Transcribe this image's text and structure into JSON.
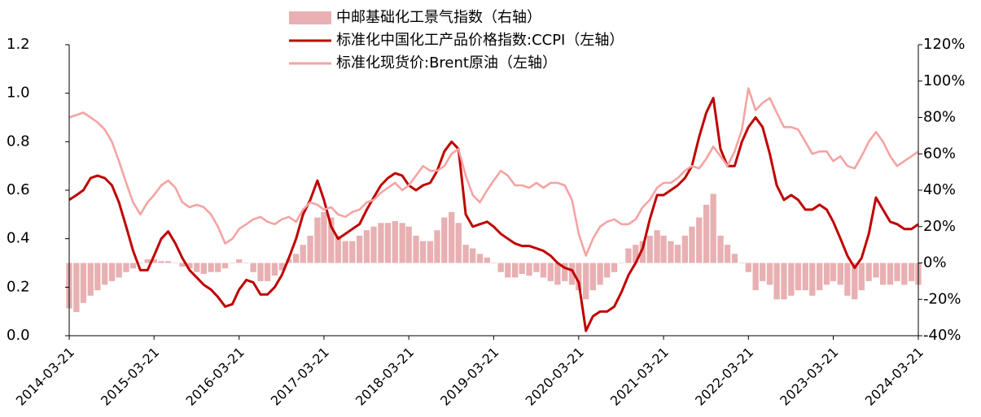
{
  "chart_data": {
    "type": "bar-line",
    "x": [
      "2014-03-21",
      "2014-04-21",
      "2014-05-21",
      "2014-06-21",
      "2014-07-21",
      "2014-08-21",
      "2014-09-21",
      "2014-10-21",
      "2014-11-21",
      "2014-12-21",
      "2015-01-21",
      "2015-02-21",
      "2015-03-21",
      "2015-04-21",
      "2015-05-21",
      "2015-06-21",
      "2015-07-21",
      "2015-08-21",
      "2015-09-21",
      "2015-10-21",
      "2015-11-21",
      "2015-12-21",
      "2016-01-21",
      "2016-02-21",
      "2016-03-21",
      "2016-04-21",
      "2016-05-21",
      "2016-06-21",
      "2016-07-21",
      "2016-08-21",
      "2016-09-21",
      "2016-10-21",
      "2016-11-21",
      "2016-12-21",
      "2017-01-21",
      "2017-02-21",
      "2017-03-21",
      "2017-04-21",
      "2017-05-21",
      "2017-06-21",
      "2017-07-21",
      "2017-08-21",
      "2017-09-21",
      "2017-10-21",
      "2017-11-21",
      "2017-12-21",
      "2018-01-21",
      "2018-02-21",
      "2018-03-21",
      "2018-04-21",
      "2018-05-21",
      "2018-06-21",
      "2018-07-21",
      "2018-08-21",
      "2018-09-21",
      "2018-10-21",
      "2018-11-21",
      "2018-12-21",
      "2019-01-21",
      "2019-02-21",
      "2019-03-21",
      "2019-04-21",
      "2019-05-21",
      "2019-06-21",
      "2019-07-21",
      "2019-08-21",
      "2019-09-21",
      "2019-10-21",
      "2019-11-21",
      "2019-12-21",
      "2020-01-21",
      "2020-02-21",
      "2020-03-21",
      "2020-04-21",
      "2020-05-21",
      "2020-06-21",
      "2020-07-21",
      "2020-08-21",
      "2020-09-21",
      "2020-10-21",
      "2020-11-21",
      "2020-12-21",
      "2021-01-21",
      "2021-02-21",
      "2021-03-21",
      "2021-04-21",
      "2021-05-21",
      "2021-06-21",
      "2021-07-21",
      "2021-08-21",
      "2021-09-21",
      "2021-10-21",
      "2021-11-21",
      "2021-12-21",
      "2022-01-21",
      "2022-02-21",
      "2022-03-21",
      "2022-04-21",
      "2022-05-21",
      "2022-06-21",
      "2022-07-21",
      "2022-08-21",
      "2022-09-21",
      "2022-10-21",
      "2022-11-21",
      "2022-12-21",
      "2023-01-21",
      "2023-02-21",
      "2023-03-21",
      "2023-04-21",
      "2023-05-21",
      "2023-06-21",
      "2023-07-21",
      "2023-08-21",
      "2023-09-21",
      "2023-10-21",
      "2023-11-21",
      "2023-12-21",
      "2024-01-21",
      "2024-02-21",
      "2024-03-21"
    ],
    "series": [
      {
        "name": "中邮基础化工景气指数（右轴）",
        "color": "#e8b0b2",
        "kind": "bar",
        "axis": "y2",
        "values": [
          -25,
          -27,
          -22,
          -18,
          -15,
          -12,
          -10,
          -8,
          -5,
          -3,
          0,
          2,
          2,
          1,
          1,
          0,
          -2,
          -3,
          -5,
          -6,
          -5,
          -5,
          -3,
          0,
          2,
          0,
          -5,
          -10,
          -10,
          -7,
          -4,
          2,
          5,
          10,
          15,
          25,
          28,
          25,
          15,
          12,
          12,
          15,
          18,
          20,
          22,
          22,
          23,
          22,
          20,
          15,
          12,
          12,
          18,
          25,
          28,
          22,
          10,
          8,
          5,
          3,
          0,
          -5,
          -8,
          -8,
          -6,
          -7,
          -5,
          -8,
          -10,
          -12,
          -10,
          -12,
          -15,
          -20,
          -15,
          -12,
          -8,
          -5,
          0,
          8,
          10,
          12,
          15,
          18,
          15,
          12,
          10,
          15,
          20,
          25,
          32,
          38,
          15,
          10,
          5,
          0,
          -5,
          -15,
          -10,
          -12,
          -20,
          -20,
          -18,
          -15,
          -15,
          -18,
          -15,
          -12,
          -10,
          -12,
          -18,
          -20,
          -15,
          -10,
          -8,
          -12,
          -12,
          -10,
          -12,
          -10,
          -12
        ]
      },
      {
        "name": "标准化中国化工产品价格指数:CCPI（左轴）",
        "color": "#c00000",
        "kind": "line",
        "values": [
          0.56,
          0.58,
          0.6,
          0.65,
          0.66,
          0.65,
          0.62,
          0.55,
          0.45,
          0.35,
          0.27,
          0.27,
          0.33,
          0.4,
          0.43,
          0.38,
          0.32,
          0.27,
          0.24,
          0.21,
          0.19,
          0.16,
          0.12,
          0.13,
          0.19,
          0.23,
          0.22,
          0.17,
          0.17,
          0.2,
          0.25,
          0.32,
          0.4,
          0.5,
          0.56,
          0.64,
          0.56,
          0.45,
          0.4,
          0.42,
          0.44,
          0.46,
          0.52,
          0.57,
          0.62,
          0.65,
          0.67,
          0.66,
          0.62,
          0.6,
          0.62,
          0.63,
          0.68,
          0.76,
          0.8,
          0.77,
          0.5,
          0.45,
          0.46,
          0.47,
          0.45,
          0.42,
          0.4,
          0.38,
          0.37,
          0.37,
          0.36,
          0.35,
          0.33,
          0.3,
          0.28,
          0.27,
          0.22,
          0.02,
          0.08,
          0.1,
          0.1,
          0.12,
          0.18,
          0.25,
          0.3,
          0.36,
          0.48,
          0.58,
          0.58,
          0.6,
          0.62,
          0.65,
          0.7,
          0.82,
          0.92,
          0.98,
          0.77,
          0.7,
          0.7,
          0.8,
          0.86,
          0.9,
          0.86,
          0.75,
          0.62,
          0.56,
          0.58,
          0.56,
          0.52,
          0.52,
          0.54,
          0.52,
          0.47,
          0.4,
          0.33,
          0.28,
          0.32,
          0.42,
          0.57,
          0.52,
          0.47,
          0.46,
          0.44,
          0.44,
          0.46
        ]
      },
      {
        "name": "标准化现货价:Brent原油（左轴）",
        "color": "#f5a3a3",
        "kind": "line",
        "values": [
          0.9,
          0.91,
          0.92,
          0.9,
          0.88,
          0.85,
          0.8,
          0.72,
          0.63,
          0.55,
          0.5,
          0.55,
          0.58,
          0.62,
          0.64,
          0.61,
          0.55,
          0.53,
          0.54,
          0.53,
          0.5,
          0.45,
          0.38,
          0.4,
          0.44,
          0.46,
          0.48,
          0.49,
          0.47,
          0.46,
          0.48,
          0.49,
          0.47,
          0.52,
          0.55,
          0.54,
          0.52,
          0.53,
          0.5,
          0.49,
          0.51,
          0.52,
          0.55,
          0.56,
          0.59,
          0.61,
          0.63,
          0.6,
          0.62,
          0.66,
          0.7,
          0.68,
          0.68,
          0.7,
          0.75,
          0.77,
          0.66,
          0.58,
          0.55,
          0.6,
          0.64,
          0.68,
          0.66,
          0.62,
          0.62,
          0.61,
          0.63,
          0.61,
          0.63,
          0.63,
          0.62,
          0.56,
          0.42,
          0.33,
          0.4,
          0.45,
          0.47,
          0.48,
          0.46,
          0.46,
          0.48,
          0.53,
          0.56,
          0.61,
          0.63,
          0.63,
          0.65,
          0.68,
          0.7,
          0.69,
          0.73,
          0.78,
          0.74,
          0.7,
          0.76,
          0.85,
          1.02,
          0.93,
          0.96,
          0.98,
          0.92,
          0.86,
          0.86,
          0.85,
          0.8,
          0.75,
          0.76,
          0.76,
          0.72,
          0.74,
          0.7,
          0.69,
          0.74,
          0.8,
          0.84,
          0.8,
          0.74,
          0.7,
          0.72,
          0.74,
          0.76
        ]
      }
    ],
    "xlim": [
      "2014-03-21",
      "2024-03-21"
    ],
    "xticks": [
      "2014-03-21",
      "2015-03-21",
      "2016-03-21",
      "2017-03-21",
      "2018-03-21",
      "2019-03-21",
      "2020-03-21",
      "2021-03-21",
      "2022-03-21",
      "2023-03-21",
      "2024-03-21"
    ],
    "ylim": [
      0,
      1.2
    ],
    "yticks": [
      {
        "value": 0,
        "label": "0.0"
      },
      0.2,
      0.4,
      0.6,
      0.8,
      {
        "value": 1,
        "label": "1.0"
      },
      1.2
    ],
    "y2lim": [
      -40,
      120
    ],
    "y2ticks": [
      {
        "value": -40,
        "label": "-40%"
      },
      {
        "value": -20,
        "label": "-20%"
      },
      {
        "value": 0,
        "label": "0%"
      },
      {
        "value": 20,
        "label": "20%"
      },
      {
        "value": 40,
        "label": "40%"
      },
      {
        "value": 60,
        "label": "60%"
      },
      {
        "value": 80,
        "label": "80%"
      },
      {
        "value": 100,
        "label": "100%"
      },
      {
        "value": 120,
        "label": "120%"
      }
    ],
    "legend": "top"
  }
}
